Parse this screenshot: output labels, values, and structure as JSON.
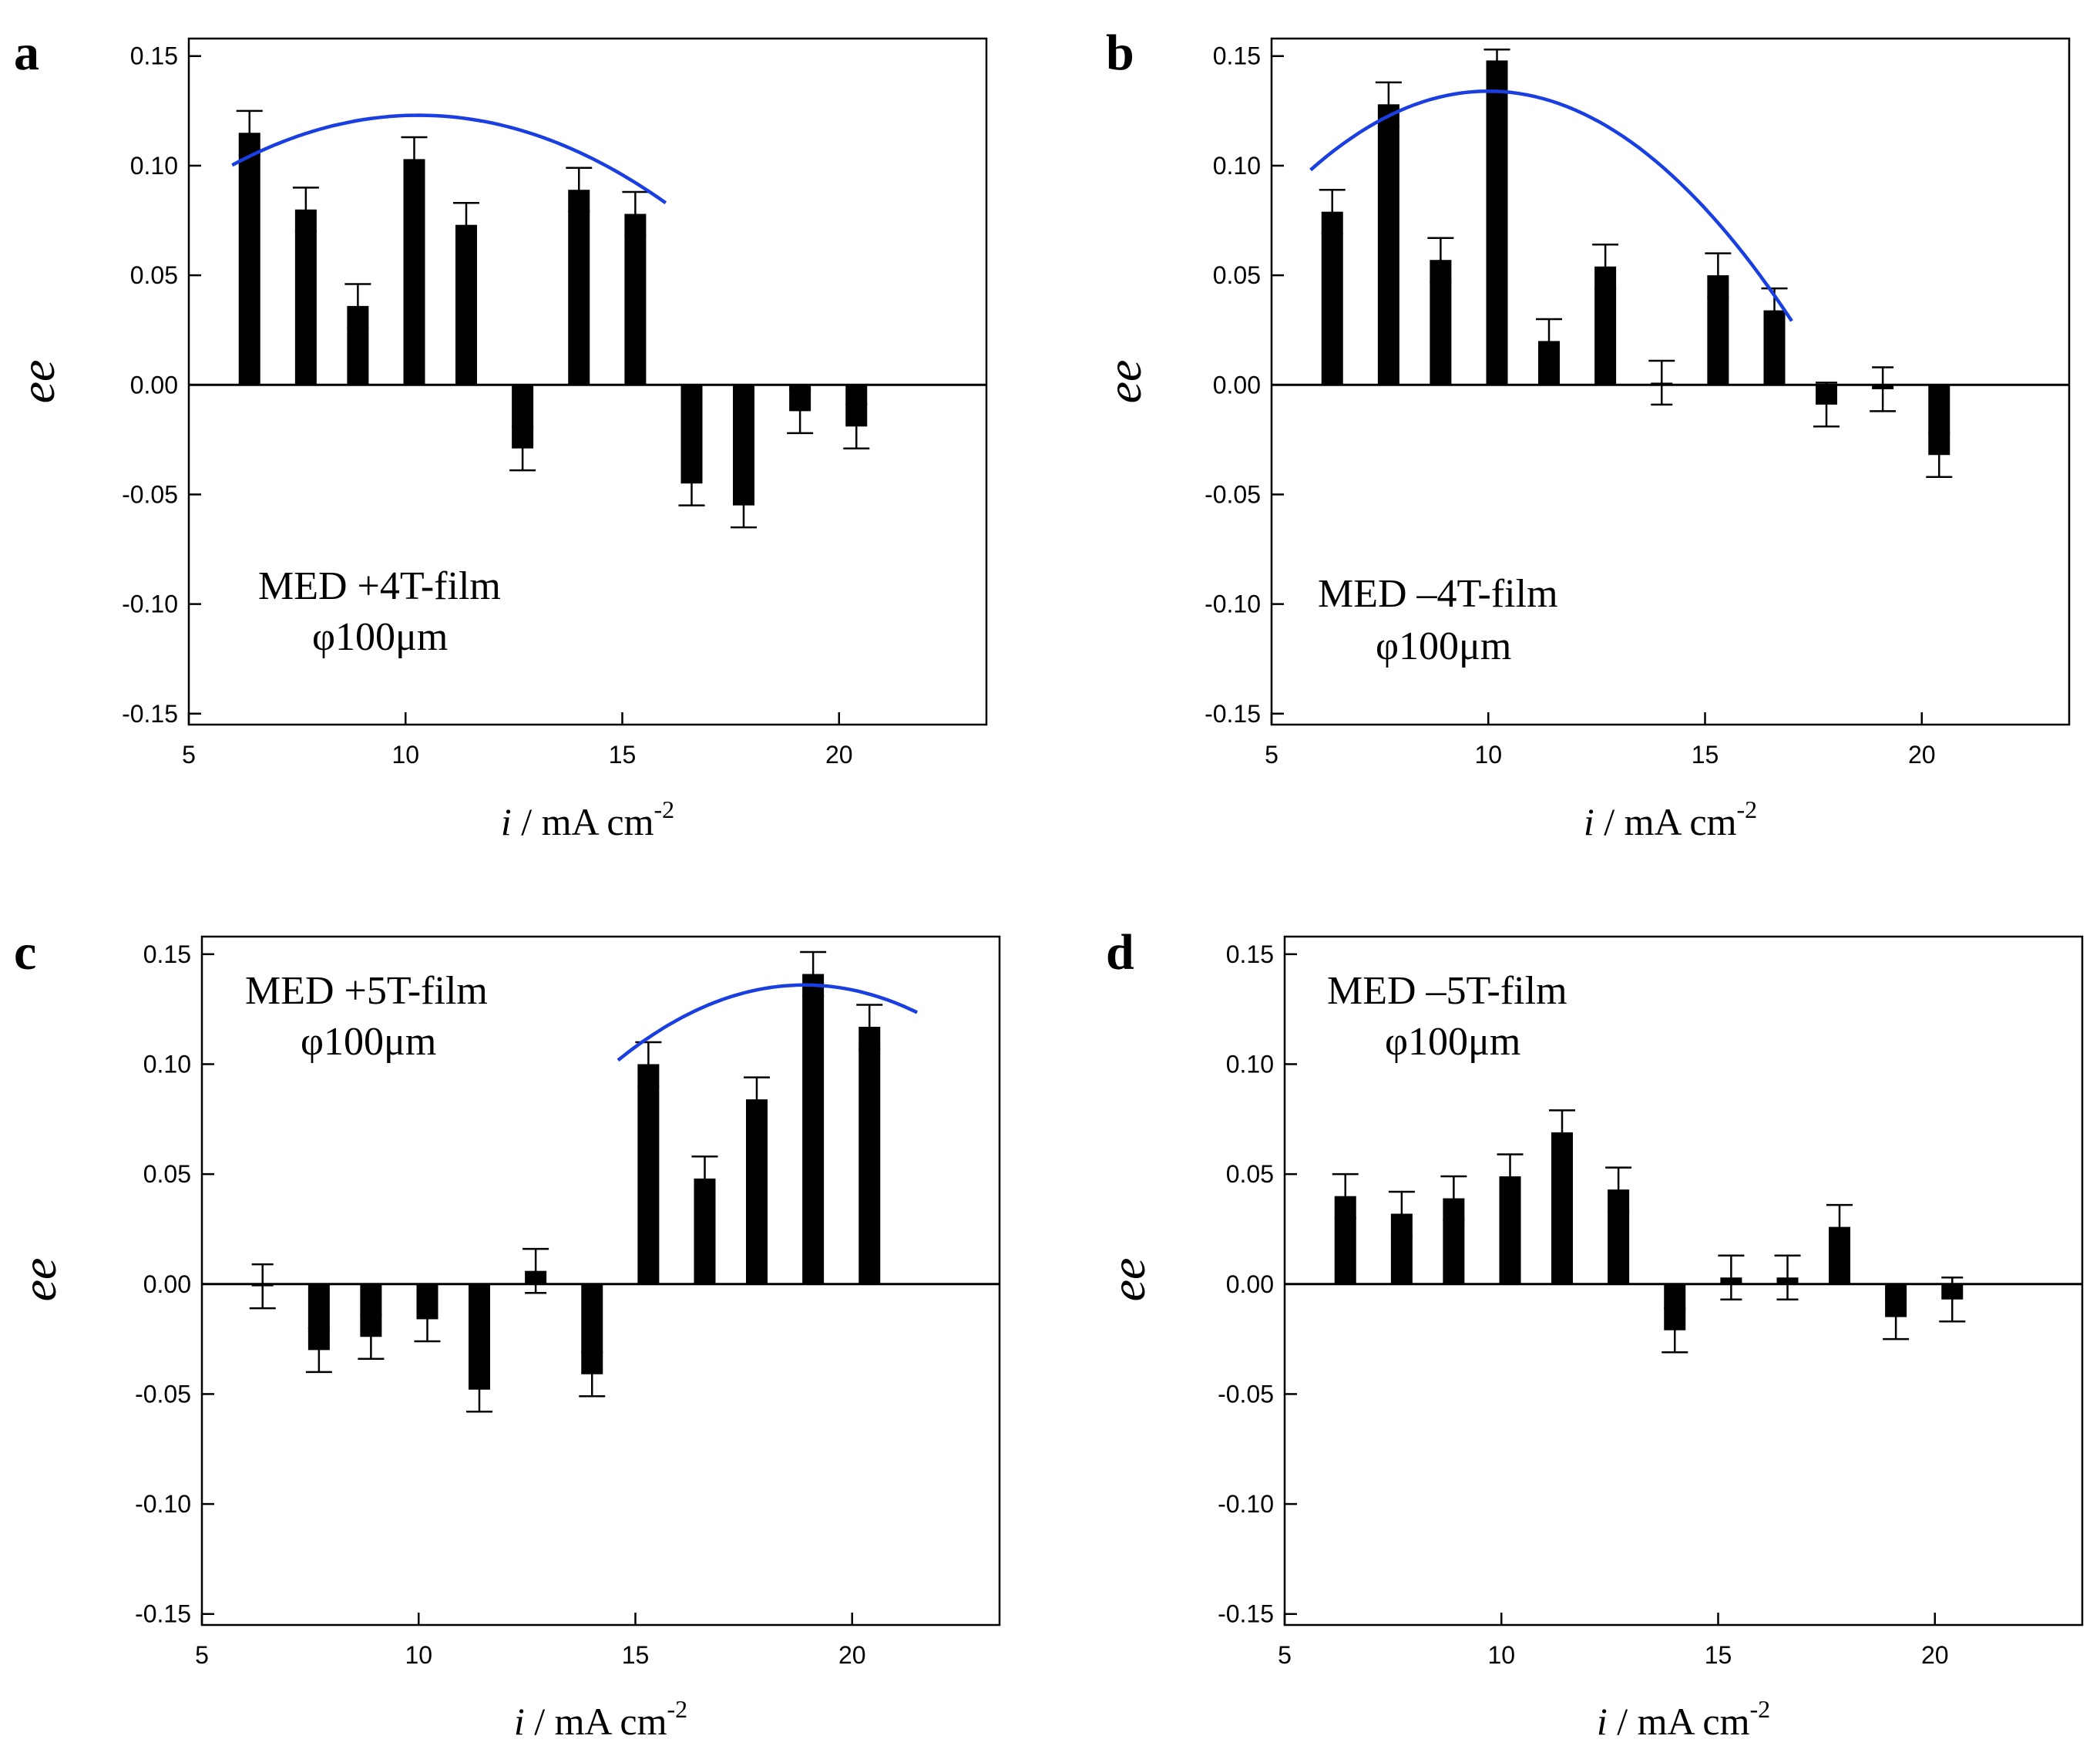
{
  "chart_data": [
    {
      "type": "bar",
      "panel": "a",
      "annotation": [
        "MED +4T-film",
        "φ100μm"
      ],
      "xlabel": {
        "var": "i",
        "unit": " / mA cm",
        "sup": "-2"
      },
      "ylabel": "ee",
      "xlim": [
        5,
        23.4
      ],
      "ylim": [
        -0.155,
        0.158
      ],
      "xticks": [
        5,
        10,
        15,
        20
      ],
      "yticks": [
        0.15,
        0.1,
        0.05,
        0.0,
        -0.05,
        -0.1,
        -0.15
      ],
      "ytick_labels": [
        "0.15",
        "0.10",
        "0.05",
        "0.00",
        "-0.05",
        "-0.10",
        "-0.15"
      ],
      "x": [
        6.4,
        7.7,
        8.9,
        10.2,
        11.4,
        12.7,
        14.0,
        15.3,
        16.6,
        17.8,
        19.1,
        20.4
      ],
      "values": [
        0.115,
        0.08,
        0.036,
        0.103,
        0.073,
        -0.029,
        0.089,
        0.078,
        -0.045,
        -0.055,
        -0.012,
        -0.019
      ],
      "error": [
        0.01,
        0.01,
        0.01,
        0.01,
        0.01,
        0.01,
        0.01,
        0.01,
        0.01,
        0.01,
        0.01,
        0.01
      ],
      "fit": {
        "color": "#1a3fe0",
        "x0": 6.0,
        "x1": 16.0,
        "vertex_x": 10.3,
        "vertex_y": 0.123,
        "a": -0.00123
      }
    },
    {
      "type": "bar",
      "panel": "b",
      "annotation": [
        "MED –4T-film",
        "φ100μm"
      ],
      "xlabel": {
        "var": "i",
        "unit": " / mA cm",
        "sup": "-2"
      },
      "ylabel": "ee",
      "xlim": [
        5,
        23.4
      ],
      "ylim": [
        -0.155,
        0.158
      ],
      "xticks": [
        5,
        10,
        15,
        20
      ],
      "yticks": [
        0.15,
        0.1,
        0.05,
        0.0,
        -0.05,
        -0.1,
        -0.15
      ],
      "ytick_labels": [
        "0.15",
        "0.10",
        "0.05",
        "0.00",
        "-0.05",
        "-0.10",
        "-0.15"
      ],
      "x": [
        6.4,
        7.7,
        8.9,
        10.2,
        11.4,
        12.7,
        14.0,
        15.3,
        16.6,
        17.8,
        19.1,
        20.4
      ],
      "values": [
        0.079,
        0.128,
        0.057,
        0.148,
        0.02,
        0.054,
        0.001,
        0.05,
        0.034,
        -0.009,
        -0.002,
        -0.032
      ],
      "error": [
        0.01,
        0.01,
        0.01,
        0.005,
        0.01,
        0.01,
        0.01,
        0.01,
        0.01,
        0.01,
        0.01,
        0.01
      ],
      "fit": {
        "color": "#1a3fe0",
        "x0": 5.9,
        "x1": 17.0,
        "vertex_x": 10.0,
        "vertex_y": 0.134,
        "a": -0.00214
      }
    },
    {
      "type": "bar",
      "panel": "c",
      "annotation": [
        "MED +5T-film",
        "φ100μm"
      ],
      "xlabel": {
        "var": "i",
        "unit": " / mA cm",
        "sup": "-2"
      },
      "ylabel": "ee",
      "xlim": [
        5,
        23.4
      ],
      "ylim": [
        -0.155,
        0.158
      ],
      "xticks": [
        5,
        10,
        15,
        20
      ],
      "yticks": [
        0.15,
        0.1,
        0.05,
        0.0,
        -0.05,
        -0.1,
        -0.15
      ],
      "ytick_labels": [
        "0.15",
        "0.10",
        "0.05",
        "0.00",
        "-0.05",
        "-0.10",
        "-0.15"
      ],
      "x": [
        6.4,
        7.7,
        8.9,
        10.2,
        11.4,
        12.7,
        14.0,
        15.3,
        16.6,
        17.8,
        19.1,
        20.4
      ],
      "values": [
        -0.001,
        -0.03,
        -0.024,
        -0.016,
        -0.048,
        0.006,
        -0.041,
        0.1,
        0.048,
        0.084,
        0.141,
        0.117
      ],
      "error": [
        0.01,
        0.01,
        0.01,
        0.01,
        0.01,
        0.01,
        0.01,
        0.01,
        0.01,
        0.01,
        0.01,
        0.01
      ],
      "fit": {
        "color": "#1a3fe0",
        "x0": 14.6,
        "x1": 21.5,
        "vertex_x": 18.9,
        "vertex_y": 0.136,
        "a": -0.00185
      }
    },
    {
      "type": "bar",
      "panel": "d",
      "annotation": [
        "MED –5T-film",
        "φ100μm"
      ],
      "xlabel": {
        "var": "i",
        "unit": " / mA cm",
        "sup": "-2"
      },
      "ylabel": "ee",
      "xlim": [
        5,
        23.4
      ],
      "ylim": [
        -0.155,
        0.158
      ],
      "xticks": [
        5,
        10,
        15,
        20
      ],
      "yticks": [
        0.15,
        0.1,
        0.05,
        0.0,
        -0.05,
        -0.1,
        -0.15
      ],
      "ytick_labels": [
        "0.15",
        "0.10",
        "0.05",
        "0.00",
        "-0.05",
        "-0.10",
        "-0.15"
      ],
      "x": [
        6.4,
        7.7,
        8.9,
        10.2,
        11.4,
        12.7,
        14.0,
        15.3,
        16.6,
        17.8,
        19.1,
        20.4
      ],
      "values": [
        0.04,
        0.032,
        0.039,
        0.049,
        0.069,
        0.043,
        -0.021,
        0.003,
        0.003,
        0.026,
        -0.015,
        -0.007
      ],
      "error": [
        0.01,
        0.01,
        0.01,
        0.01,
        0.01,
        0.01,
        0.01,
        0.01,
        0.01,
        0.01,
        0.01,
        0.01
      ],
      "fit": null
    }
  ]
}
